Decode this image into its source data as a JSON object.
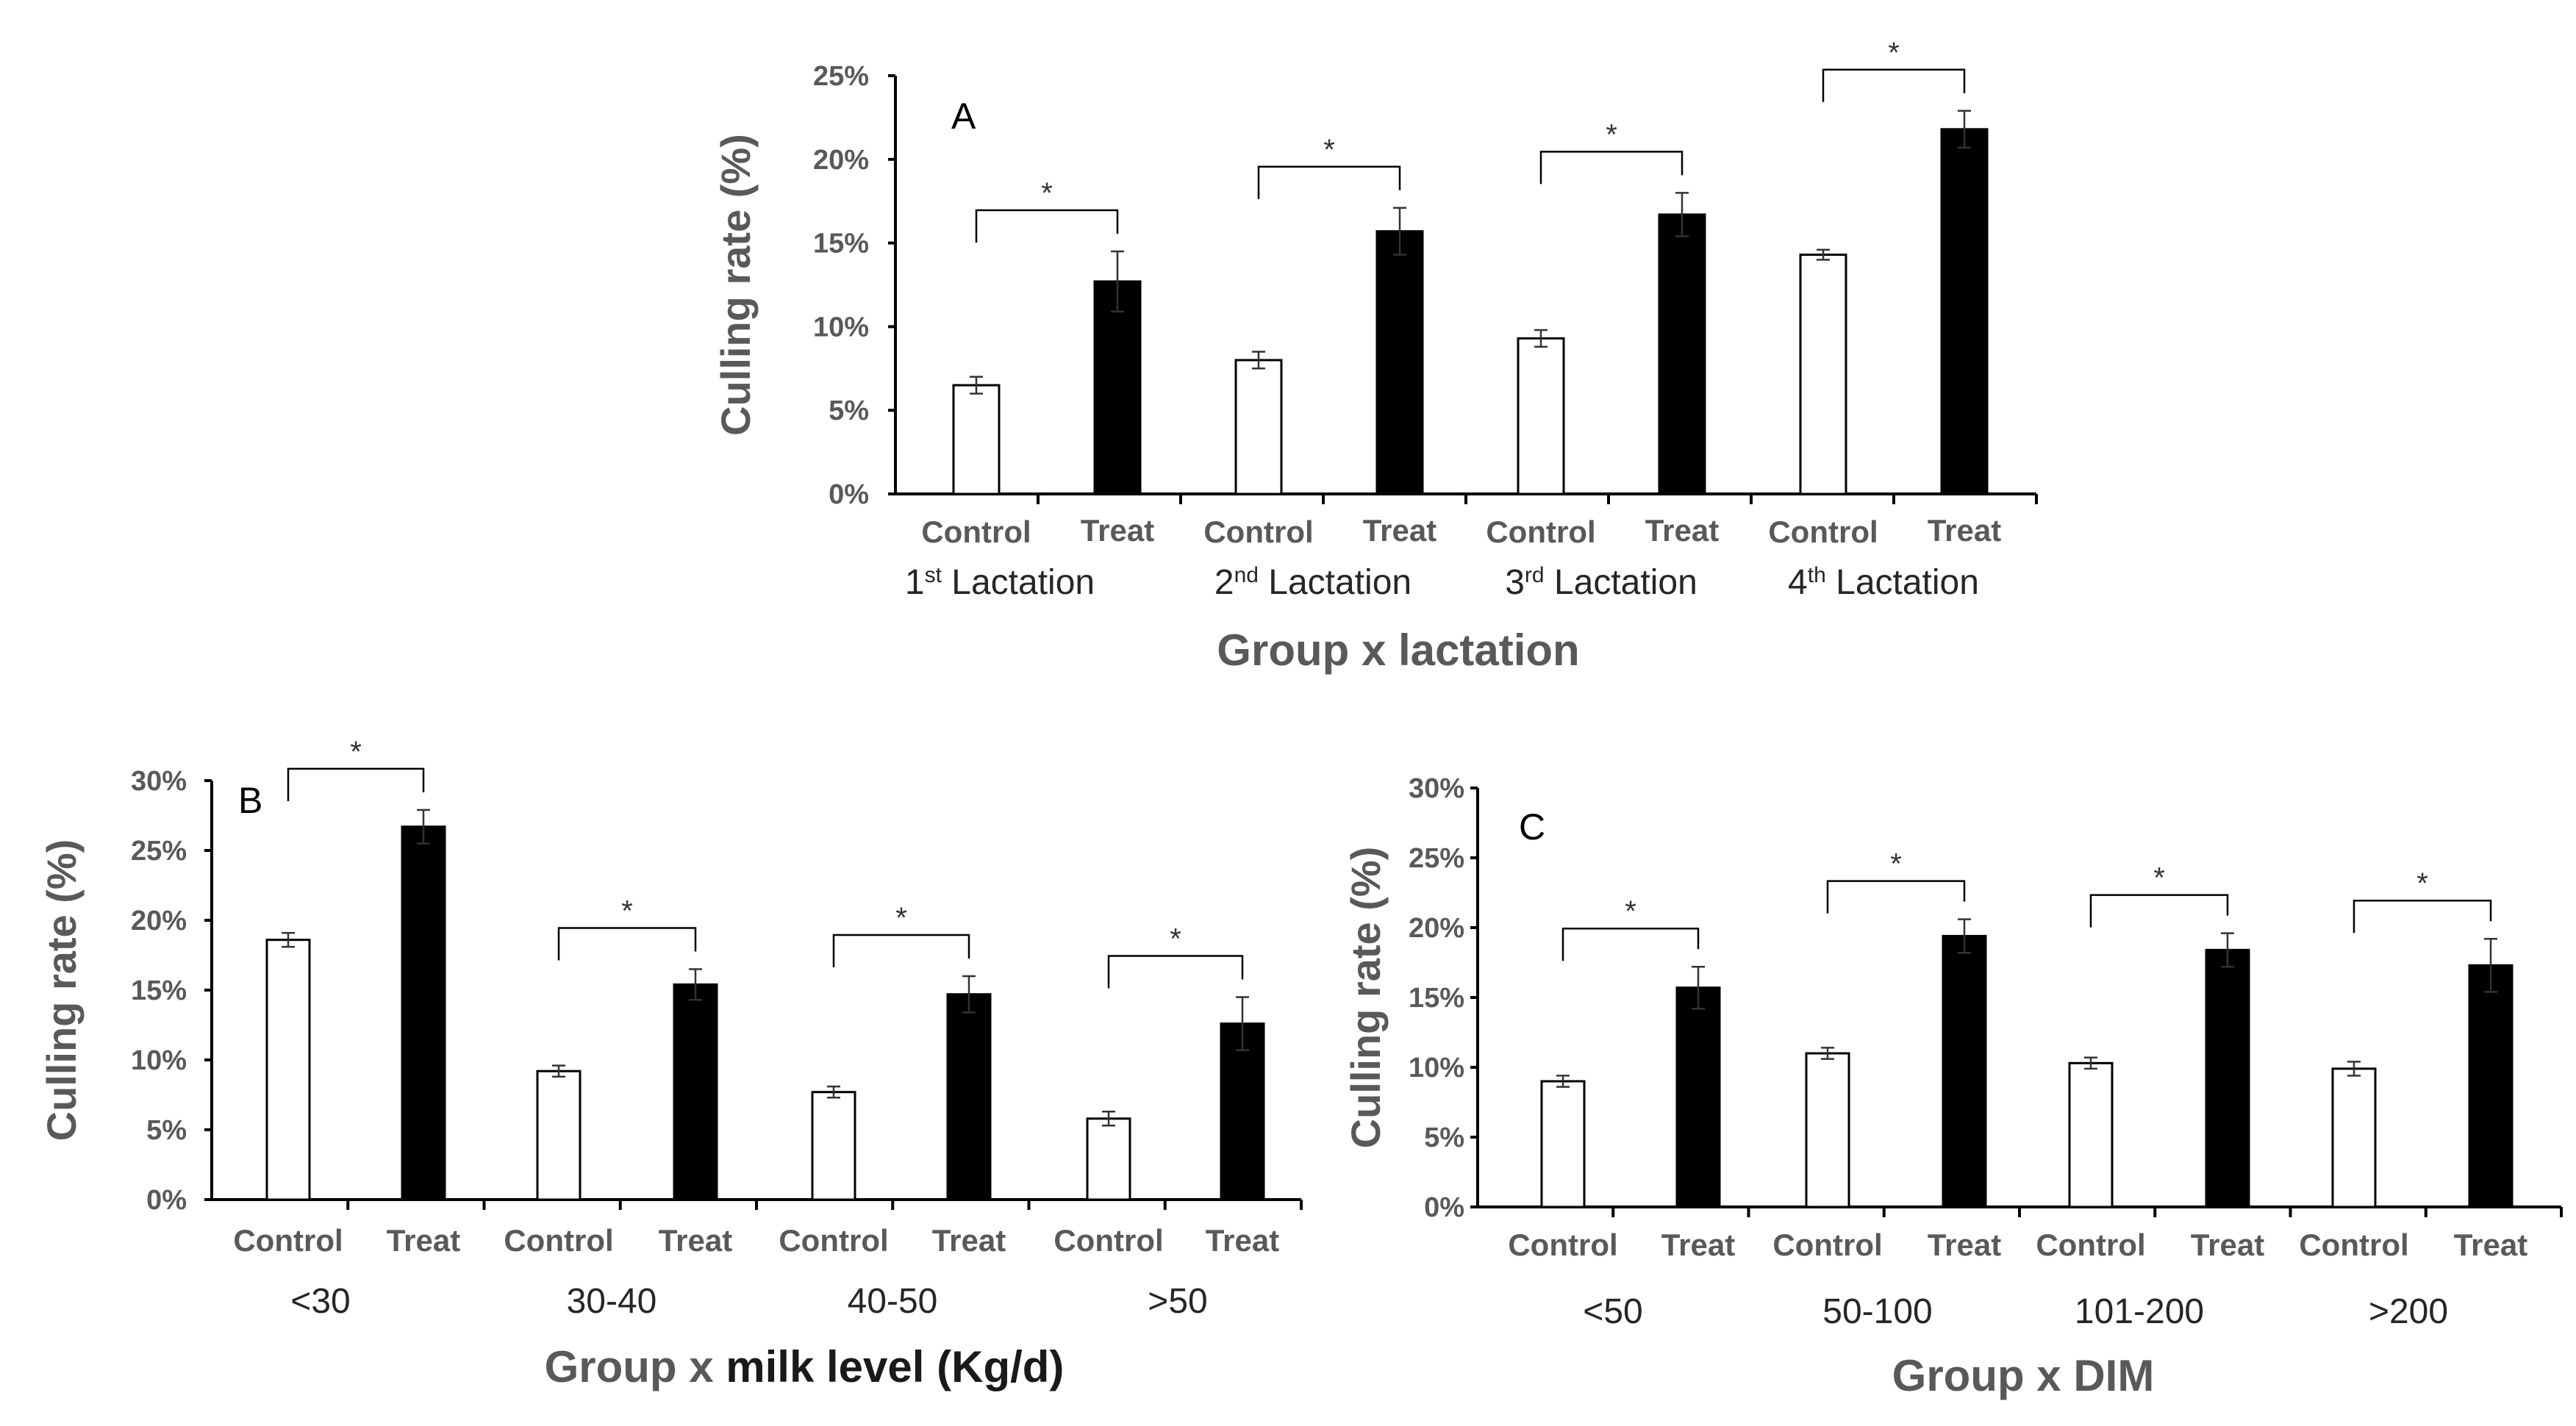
{
  "chart_data": [
    {
      "panel": "A",
      "type": "bar",
      "ylabel": "Culling rate (%)",
      "ylim": [
        0,
        25
      ],
      "yticks": [
        "0%",
        "5%",
        "10%",
        "15%",
        "20%",
        "25%"
      ],
      "xlabel": "Group x lactation",
      "groups": [
        {
          "label": "1",
          "sup": "st",
          "suffix": "Lactation",
          "values": [
            6.5,
            12.7
          ],
          "errors": [
            0.5,
            1.8
          ],
          "sig": "*"
        },
        {
          "label": "2",
          "sup": "nd",
          "suffix": "Lactation",
          "values": [
            8.0,
            15.7
          ],
          "errors": [
            0.5,
            1.4
          ],
          "sig": "*"
        },
        {
          "label": "3",
          "sup": "rd",
          "suffix": "Lactation",
          "values": [
            9.3,
            16.7
          ],
          "errors": [
            0.5,
            1.3
          ],
          "sig": "*"
        },
        {
          "label": "4",
          "sup": "th",
          "suffix": "Lactation",
          "values": [
            14.3,
            21.8
          ],
          "errors": [
            0.3,
            1.1
          ],
          "sig": "*"
        }
      ],
      "series": [
        {
          "name": "Control",
          "color": "#ffffff"
        },
        {
          "name": "Treat",
          "color": "#000000"
        }
      ]
    },
    {
      "panel": "B",
      "type": "bar",
      "ylabel": "Culling rate (%)",
      "ylim": [
        0,
        30
      ],
      "yticks": [
        "0%",
        "5%",
        "10%",
        "15%",
        "20%",
        "25%",
        "30%"
      ],
      "xlabel": "Group x milk level (Kg/d)",
      "xlabel_parts": [
        "Group x ",
        "milk level (Kg/d)"
      ],
      "groups": [
        {
          "label": "<30",
          "values": [
            18.6,
            26.7
          ],
          "errors": [
            0.5,
            1.2
          ],
          "sig": "*"
        },
        {
          "label": "30-40",
          "values": [
            9.2,
            15.4
          ],
          "errors": [
            0.4,
            1.1
          ],
          "sig": "*"
        },
        {
          "label": "40-50",
          "values": [
            7.7,
            14.7
          ],
          "errors": [
            0.4,
            1.3
          ],
          "sig": "*"
        },
        {
          "label": ">50",
          "values": [
            5.8,
            12.6
          ],
          "errors": [
            0.5,
            1.9
          ],
          "sig": "*"
        }
      ],
      "series": [
        {
          "name": "Control",
          "color": "#ffffff"
        },
        {
          "name": "Treat",
          "color": "#000000"
        }
      ]
    },
    {
      "panel": "C",
      "type": "bar",
      "ylabel": "Culling rate (%)",
      "ylim": [
        0,
        30
      ],
      "yticks": [
        "0%",
        "5%",
        "10%",
        "15%",
        "20%",
        "25%",
        "30%"
      ],
      "xlabel": "Group x DIM",
      "groups": [
        {
          "label": "<50",
          "values": [
            9.0,
            15.7
          ],
          "errors": [
            0.4,
            1.5
          ],
          "sig": "*"
        },
        {
          "label": "50-100",
          "values": [
            11.0,
            19.4
          ],
          "errors": [
            0.4,
            1.2
          ],
          "sig": "*"
        },
        {
          "label": "101-200",
          "values": [
            10.3,
            18.4
          ],
          "errors": [
            0.4,
            1.2
          ],
          "sig": "*"
        },
        {
          "label": ">200",
          "values": [
            9.9,
            17.3
          ],
          "errors": [
            0.5,
            1.9
          ],
          "sig": "*"
        }
      ],
      "series": [
        {
          "name": "Control",
          "color": "#ffffff"
        },
        {
          "name": "Treat",
          "color": "#000000"
        }
      ]
    }
  ]
}
